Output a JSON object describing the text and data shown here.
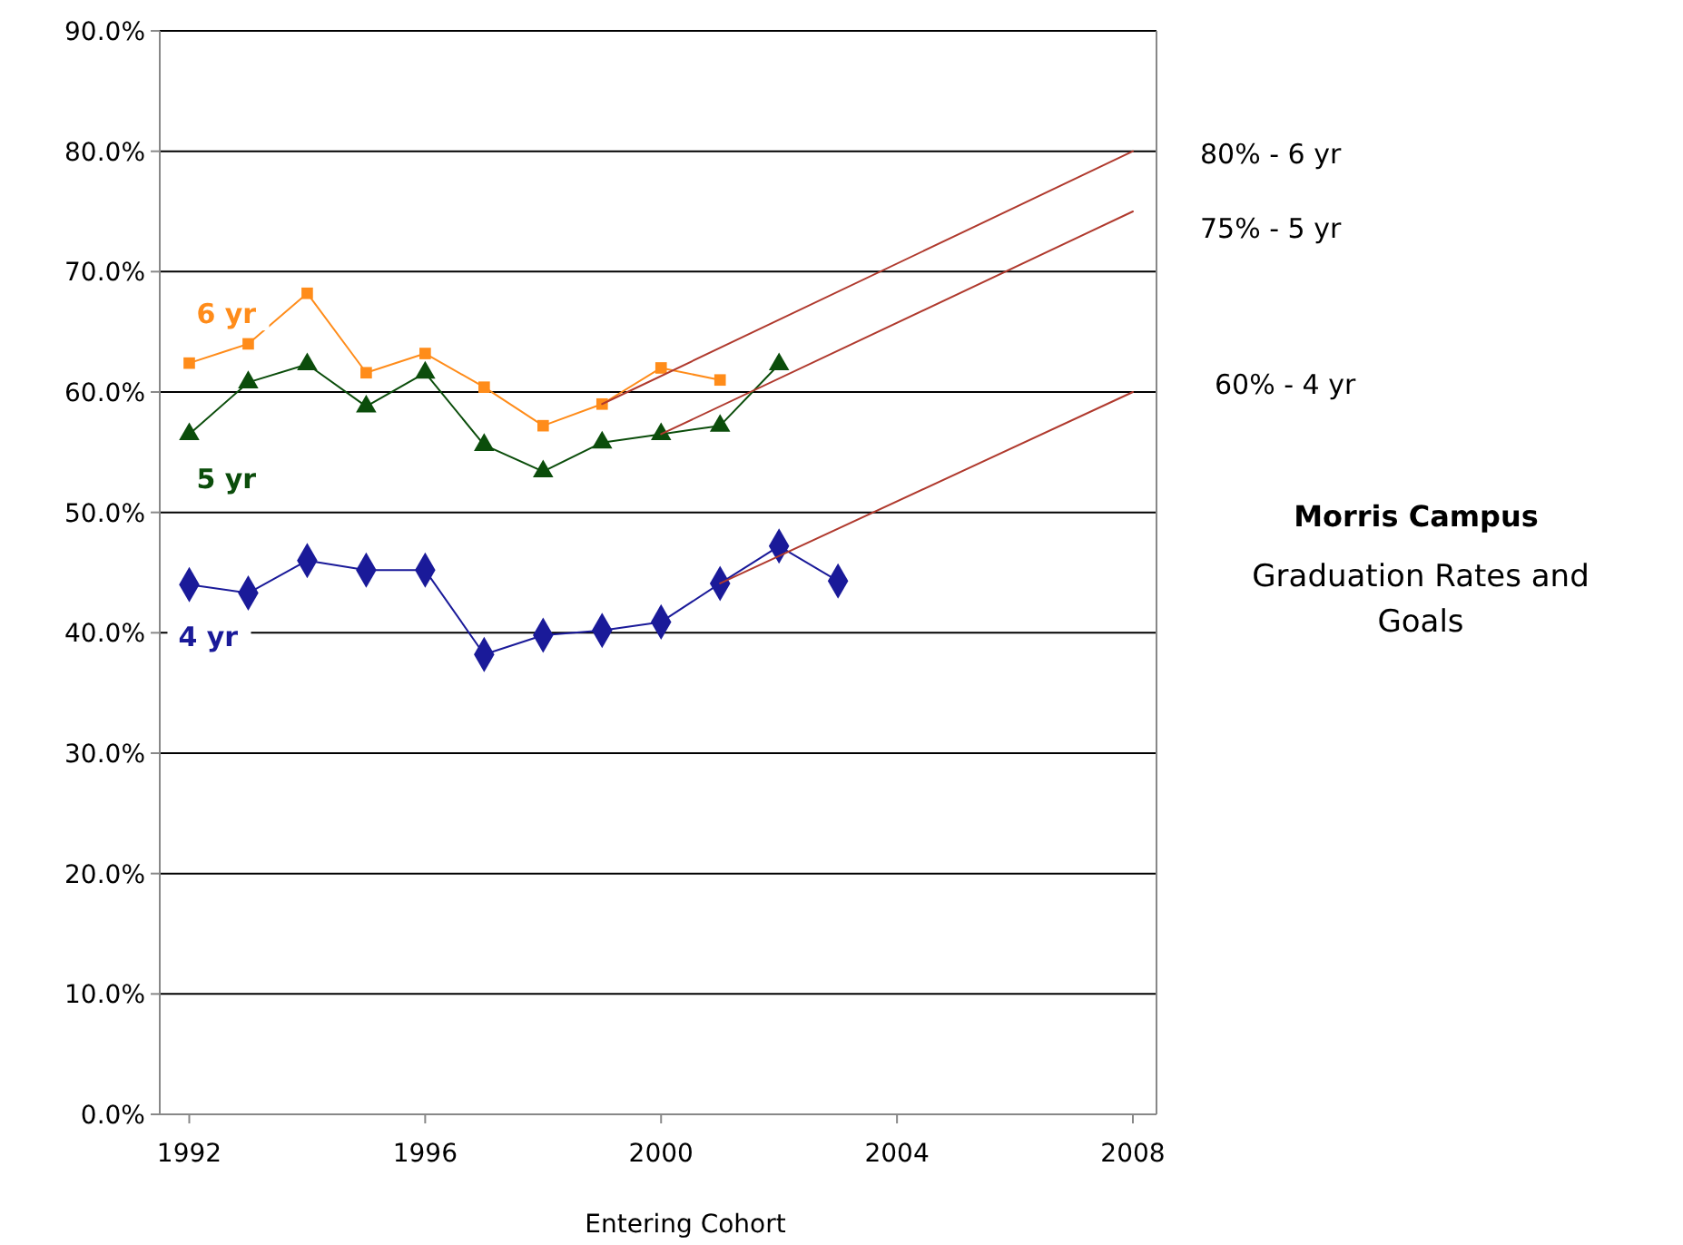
{
  "chart_data": {
    "type": "line",
    "title": "Morris Campus",
    "subtitle": "Graduation Rates and Goals",
    "xlabel": "Entering Cohort",
    "xlim": [
      1991.5,
      2008.4
    ],
    "xticks": [
      1992,
      1996,
      2000,
      2004,
      2008
    ],
    "ylim": [
      0,
      90
    ],
    "yticks": [
      {
        "value": 0,
        "label": "0.0%"
      },
      {
        "value": 10,
        "label": "10.0%"
      },
      {
        "value": 20,
        "label": "20.0%"
      },
      {
        "value": 30,
        "label": "30.0%"
      },
      {
        "value": 40,
        "label": "40.0%"
      },
      {
        "value": 50,
        "label": "50.0%"
      },
      {
        "value": 60,
        "label": "60.0%"
      },
      {
        "value": 70,
        "label": "70.0%"
      },
      {
        "value": 80,
        "label": "80.0%"
      },
      {
        "value": 90,
        "label": "90.0%"
      }
    ],
    "grid": "y",
    "series": [
      {
        "name": "6 yr",
        "color": "#ff8c1a",
        "marker": "square",
        "x": [
          1992,
          1993,
          1994,
          1995,
          1996,
          1997,
          1998,
          1999,
          2000,
          2001
        ],
        "values": [
          62.4,
          64.0,
          68.2,
          61.6,
          63.2,
          60.4,
          57.2,
          59.0,
          62.0,
          61.0
        ]
      },
      {
        "name": "5 yr",
        "color": "#0b4d0b",
        "marker": "triangle",
        "x": [
          1992,
          1993,
          1994,
          1995,
          1996,
          1997,
          1998,
          1999,
          2000,
          2001,
          2002
        ],
        "values": [
          56.5,
          60.8,
          62.3,
          58.8,
          61.6,
          55.6,
          53.4,
          55.8,
          56.5,
          57.2,
          62.3
        ]
      },
      {
        "name": "4 yr",
        "color": "#1a1a99",
        "marker": "diamond",
        "x": [
          1992,
          1993,
          1994,
          1995,
          1996,
          1997,
          1998,
          1999,
          2000,
          2001,
          2002,
          2003
        ],
        "values": [
          44.0,
          43.3,
          46.0,
          45.2,
          45.2,
          38.2,
          39.8,
          40.2,
          40.9,
          44.1,
          47.2,
          44.3
        ]
      },
      {
        "color": "#b03a2e",
        "marker": "none",
        "x": [
          1999,
          2008
        ],
        "values": [
          59.0,
          80
        ]
      },
      {
        "color": "#b03a2e",
        "marker": "none",
        "x": [
          2000,
          2008
        ],
        "values": [
          56.5,
          75
        ]
      },
      {
        "color": "#b03a2e",
        "marker": "none",
        "x": [
          2001,
          2008
        ],
        "values": [
          44.1,
          60
        ]
      }
    ],
    "annotations": [
      "80% - 6 yr",
      "75% - 5 yr",
      "60% - 4 yr"
    ]
  }
}
